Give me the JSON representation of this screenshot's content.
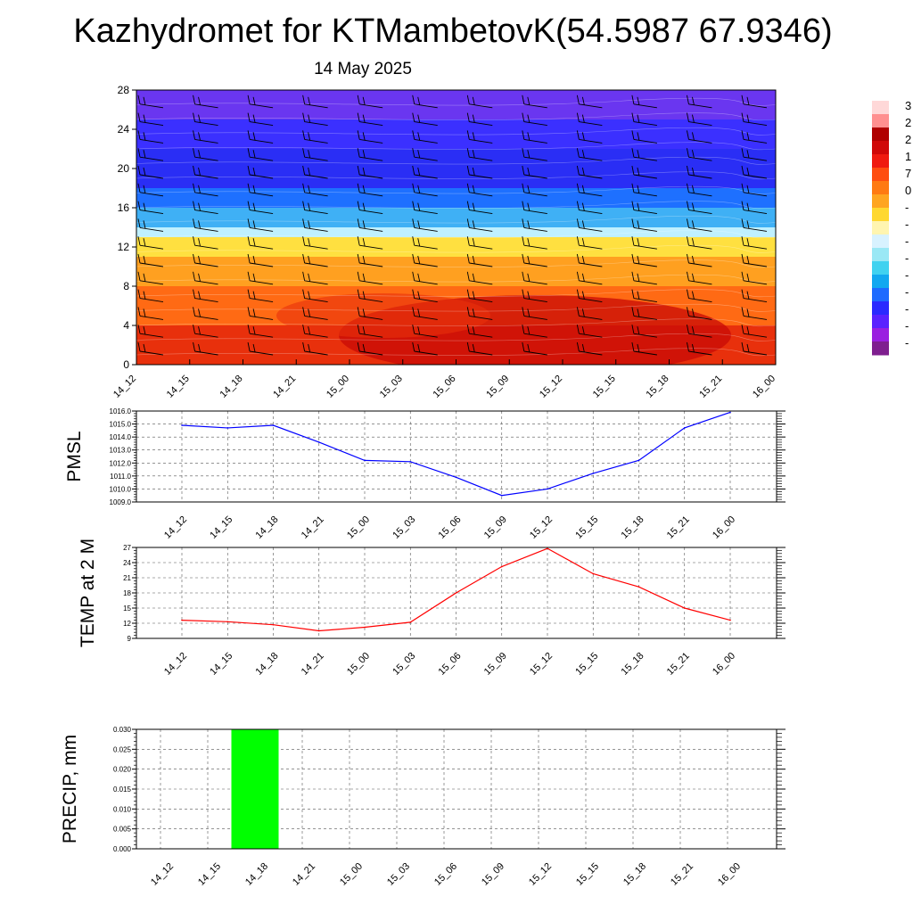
{
  "header": {
    "title": "Kazhydromet for KTMambetovK(54.5987 67.9346)",
    "subtitle": "14 May 2025"
  },
  "time_labels": [
    "14_12",
    "14_15",
    "14_18",
    "14_21",
    "15_00",
    "15_03",
    "15_06",
    "15_09",
    "15_12",
    "15_15",
    "15_18",
    "15_21",
    "16_00"
  ],
  "chart_data": [
    {
      "type": "heatmap",
      "name": "cross-section",
      "x": [
        "14_12",
        "14_15",
        "14_18",
        "14_21",
        "15_00",
        "15_03",
        "15_06",
        "15_09",
        "15_12",
        "15_15",
        "15_18",
        "15_21",
        "16_00"
      ],
      "ylim": [
        0,
        28
      ],
      "yticks": [
        "0",
        "4",
        "8",
        "12",
        "16",
        "20",
        "24",
        "28"
      ],
      "colorbar": {
        "visible_labels": [
          "3",
          "2",
          "2",
          "1",
          "7",
          "0",
          "-",
          "-",
          "-",
          "-",
          "-",
          "-",
          "-",
          "-",
          "-"
        ],
        "colors": [
          "#7f1f8f",
          "#9a1fe0",
          "#5a22ff",
          "#2a2aff",
          "#1e6bff",
          "#12a8f0",
          "#40d2f0",
          "#9ae8f5",
          "#d8f2ff",
          "#fff5b0",
          "#ffd830",
          "#ffa520",
          "#ff7a12",
          "#ff4d10",
          "#f01a10",
          "#d00808",
          "#b00000",
          "#ff9090",
          "#ffd8d8"
        ]
      },
      "contour_bands": [
        {
          "y_from": 0,
          "y_to": 4,
          "color": "#e8300c"
        },
        {
          "y_from": 4,
          "y_to": 8,
          "color": "#ff6a14"
        },
        {
          "y_from": 8,
          "y_to": 11,
          "color": "#ffa020"
        },
        {
          "y_from": 11,
          "y_to": 13,
          "color": "#ffe040"
        },
        {
          "y_from": 13,
          "y_to": 14,
          "color": "#bff0ff"
        },
        {
          "y_from": 14,
          "y_to": 16,
          "color": "#3fb0f5"
        },
        {
          "y_from": 16,
          "y_to": 18,
          "color": "#1e70ff"
        },
        {
          "y_from": 18,
          "y_to": 22,
          "color": "#2a2ef5"
        },
        {
          "y_from": 22,
          "y_to": 25,
          "color": "#3b30ff"
        },
        {
          "y_from": 25,
          "y_to": 28,
          "color": "#6a36f0"
        }
      ]
    },
    {
      "type": "line",
      "name": "PMSL",
      "ylabel": "PMSL",
      "categories": [
        "14_12",
        "14_15",
        "14_18",
        "14_21",
        "15_00",
        "15_03",
        "15_06",
        "15_09",
        "15_12",
        "15_15",
        "15_18",
        "15_21",
        "16_00"
      ],
      "values": [
        1014.9,
        1014.7,
        1014.9,
        1013.6,
        1012.2,
        1012.1,
        1010.9,
        1009.5,
        1010.0,
        1011.2,
        1012.2,
        1014.7,
        1015.9
      ],
      "ylim": [
        1009.0,
        1016.0
      ],
      "yticks": [
        "1009.0",
        "1010.0",
        "1011.0",
        "1012.0",
        "1013.0",
        "1014.0",
        "1015.0",
        "1016.0"
      ],
      "color": "#0000ff",
      "grid": true
    },
    {
      "type": "line",
      "name": "TEMP",
      "ylabel": "TEMP at 2 M",
      "categories": [
        "14_12",
        "14_15",
        "14_18",
        "14_21",
        "15_00",
        "15_03",
        "15_06",
        "15_09",
        "15_12",
        "15_15",
        "15_18",
        "15_21",
        "16_00"
      ],
      "values": [
        12.6,
        12.3,
        11.7,
        10.5,
        11.2,
        12.2,
        18.0,
        23.2,
        26.8,
        21.8,
        19.2,
        15.0,
        12.6
      ],
      "ylim": [
        9,
        27
      ],
      "yticks": [
        "9",
        "12",
        "15",
        "18",
        "21",
        "24",
        "27"
      ],
      "color": "#ff0000",
      "grid": true
    },
    {
      "type": "bar",
      "name": "PRECIP",
      "ylabel": "PRECIP, mm",
      "categories": [
        "14_12",
        "14_15",
        "14_18",
        "14_21",
        "15_00",
        "15_03",
        "15_06",
        "15_09",
        "15_12",
        "15_15",
        "15_18",
        "15_21",
        "16_00"
      ],
      "values": [
        0,
        0,
        0.03,
        0,
        0,
        0,
        0,
        0,
        0,
        0,
        0,
        0,
        0
      ],
      "ylim": [
        0,
        0.03
      ],
      "yticks": [
        "0.000",
        "0.005",
        "0.010",
        "0.015",
        "0.020",
        "0.025",
        "0.030"
      ],
      "color": "#00ff00",
      "grid": true
    }
  ]
}
